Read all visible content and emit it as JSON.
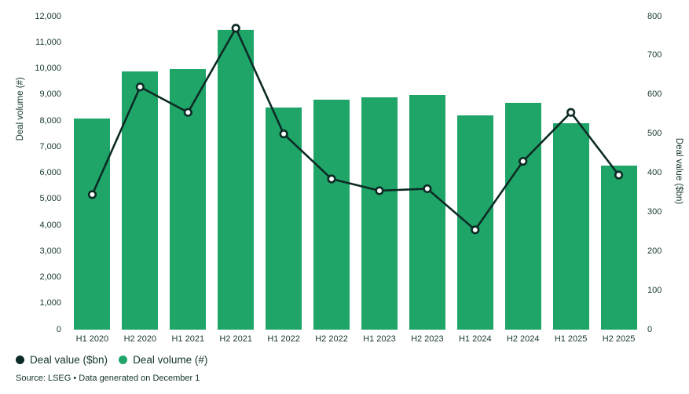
{
  "chart_data": {
    "type": "bar",
    "subtype": "combo-bar-line",
    "categories": [
      "H1 2020",
      "H2 2020",
      "H1 2021",
      "H2 2021",
      "H1 2022",
      "H2 2022",
      "H1 2023",
      "H2 2023",
      "H1 2024",
      "H2 2024",
      "H1 2025",
      "H2 2025"
    ],
    "series": [
      {
        "name": "Deal volume (#)",
        "type": "bar",
        "axis": "left",
        "color": "#1FA568",
        "values": [
          8100,
          9900,
          10000,
          11500,
          8500,
          8800,
          8900,
          9000,
          8200,
          8700,
          7900,
          6300
        ]
      },
      {
        "name": "Deal value ($bn)",
        "type": "line",
        "axis": "right",
        "color": "#0C2B25",
        "values": [
          345,
          620,
          555,
          770,
          500,
          385,
          355,
          360,
          255,
          430,
          555,
          395
        ]
      }
    ],
    "title": "",
    "xlabel": "",
    "left_axis": {
      "label": "Deal volume (#)",
      "min": 0,
      "max": 12000,
      "step": 1000
    },
    "right_axis": {
      "label": "Deal value ($bn)",
      "min": 0,
      "max": 800,
      "step": 100
    },
    "grid": false,
    "legend_position": "bottom-left",
    "marker": {
      "fill": "#ffffff",
      "stroke": "#0C2B25"
    }
  },
  "legend": {
    "items": [
      {
        "label": "Deal value ($bn)",
        "color": "#0C2B25"
      },
      {
        "label": "Deal volume (#)",
        "color": "#1FA568"
      }
    ]
  },
  "footer": {
    "source": "Source: LSEG • Data generated on December 1"
  }
}
